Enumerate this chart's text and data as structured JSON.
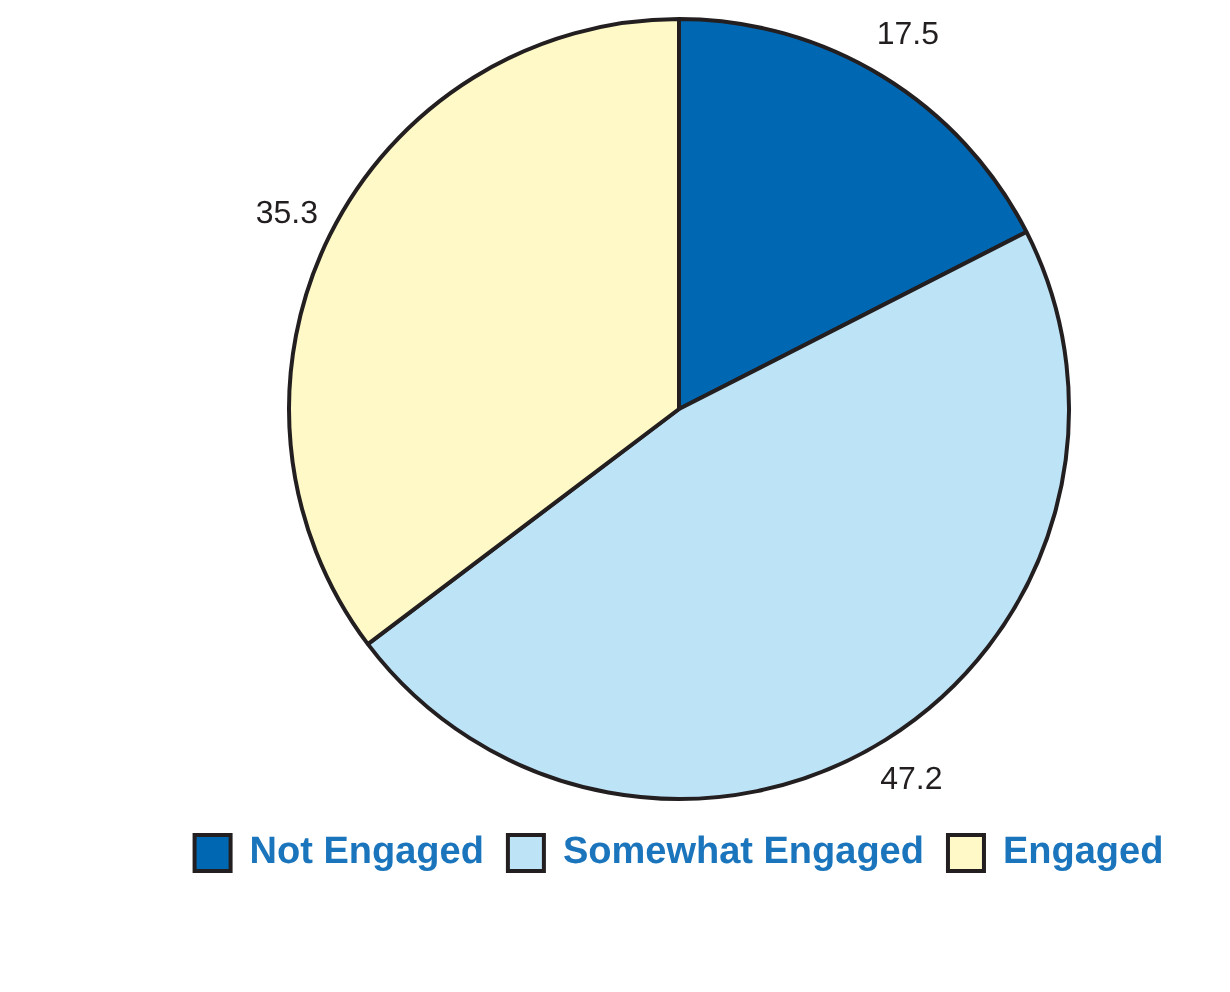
{
  "chart_data": {
    "type": "pie",
    "categories": [
      "Not Engaged",
      "Somewhat Engaged",
      "Engaged"
    ],
    "values": [
      17.5,
      47.2,
      35.3
    ],
    "colors": [
      "#0068b3",
      "#bde3f7",
      "#fef9c6"
    ],
    "data_labels": true,
    "legend": "bottom"
  }
}
